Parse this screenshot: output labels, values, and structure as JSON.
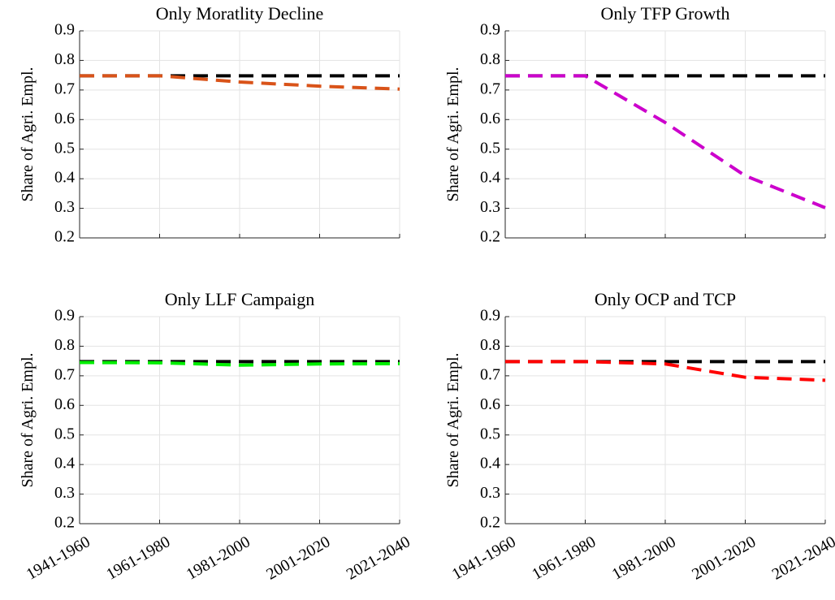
{
  "chart_data": [
    {
      "type": "line",
      "title": "Only Moratlity Decline",
      "ylabel": "Share of Agri. Empl.",
      "categories": [
        null,
        null,
        null,
        null,
        null
      ],
      "series": [
        {
          "color": "#000000",
          "values": [
            0.748,
            0.748,
            0.748,
            0.748,
            0.748
          ]
        },
        {
          "color": "#d95319",
          "values": [
            0.748,
            0.748,
            0.727,
            0.713,
            0.703
          ]
        }
      ],
      "ylim": [
        0.2,
        0.9
      ],
      "yticks": [
        0.2,
        0.3,
        0.4,
        0.5,
        0.6,
        0.7,
        0.8,
        0.9
      ],
      "grid": true
    },
    {
      "type": "line",
      "title": "Only TFP Growth",
      "ylabel": "Share of Agri. Empl.",
      "categories": [
        null,
        null,
        null,
        null,
        null
      ],
      "series": [
        {
          "color": "#000000",
          "values": [
            0.748,
            0.748,
            0.748,
            0.748,
            0.748
          ]
        },
        {
          "color": "#cc00cc",
          "values": [
            0.748,
            0.748,
            0.59,
            0.41,
            0.302
          ]
        }
      ],
      "ylim": [
        0.2,
        0.9
      ],
      "yticks": [
        0.2,
        0.3,
        0.4,
        0.5,
        0.6,
        0.7,
        0.8,
        0.9
      ],
      "grid": true
    },
    {
      "type": "line",
      "title": "Only LLF Campaign",
      "ylabel": "Share of Agri. Empl.",
      "categories": [
        "1941-1960",
        "1961-1980",
        "1981-2000",
        "2001-2020",
        "2021-2040"
      ],
      "series": [
        {
          "color": "#000000",
          "values": [
            0.748,
            0.748,
            0.748,
            0.748,
            0.748
          ]
        },
        {
          "color": "#00ee00",
          "values": [
            0.745,
            0.744,
            0.736,
            0.74,
            0.741
          ]
        }
      ],
      "ylim": [
        0.2,
        0.9
      ],
      "yticks": [
        0.2,
        0.3,
        0.4,
        0.5,
        0.6,
        0.7,
        0.8,
        0.9
      ],
      "grid": true
    },
    {
      "type": "line",
      "title": "Only OCP and TCP",
      "ylabel": "Share of Agri. Empl.",
      "categories": [
        "1941-1960",
        "1961-1980",
        "1981-2000",
        "2001-2020",
        "2021-2040"
      ],
      "series": [
        {
          "color": "#000000",
          "values": [
            0.748,
            0.748,
            0.748,
            0.748,
            0.748
          ]
        },
        {
          "color": "#ff0000",
          "values": [
            0.748,
            0.748,
            0.74,
            0.695,
            0.685
          ]
        }
      ],
      "ylim": [
        0.2,
        0.9
      ],
      "yticks": [
        0.2,
        0.3,
        0.4,
        0.5,
        0.6,
        0.7,
        0.8,
        0.9
      ],
      "grid": true
    }
  ]
}
